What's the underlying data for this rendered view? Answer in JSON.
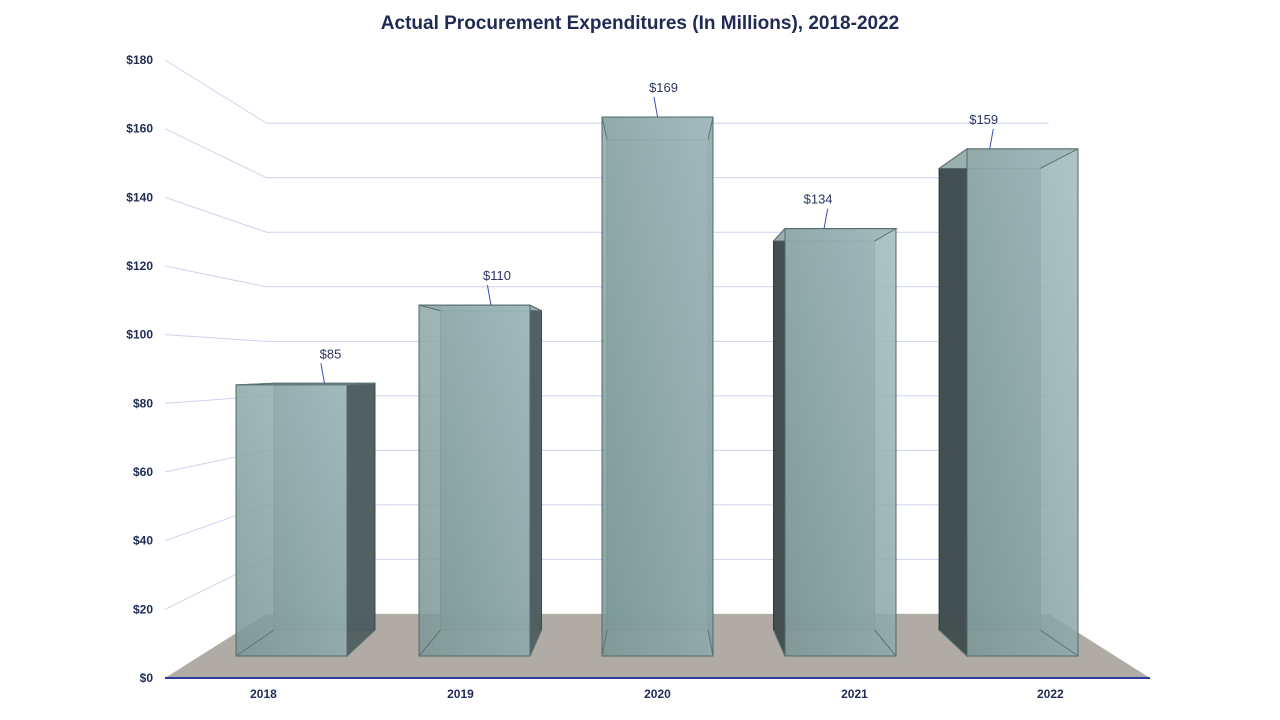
{
  "chart_data": {
    "type": "bar",
    "title": "Actual Procurement Expenditures (In Millions),  2018-2022",
    "categories": [
      "2018",
      "2019",
      "2020",
      "2021",
      "2022"
    ],
    "values": [
      85,
      110,
      169,
      134,
      159
    ],
    "data_labels": [
      "$85",
      "$110",
      "$169",
      "$134",
      "$159"
    ],
    "xlabel": "",
    "ylabel": "",
    "ylim": [
      0,
      180
    ],
    "yticks": [
      0,
      20,
      40,
      60,
      80,
      100,
      120,
      140,
      160,
      180
    ],
    "ytick_labels": [
      "$0",
      "$20",
      "$40",
      "$60",
      "$80",
      "$100",
      "$120",
      "$140",
      "$160",
      "$180"
    ],
    "grid": true,
    "style": "3d-column",
    "colors": {
      "bar_front": "#7b9696",
      "bar_top": "#9ab0b0",
      "bar_side": "#3f4b4d",
      "floor": "#b0aba4",
      "axis": "#2b3b9a",
      "grid": "#ccd3ee",
      "title": "#1f2a55"
    }
  }
}
